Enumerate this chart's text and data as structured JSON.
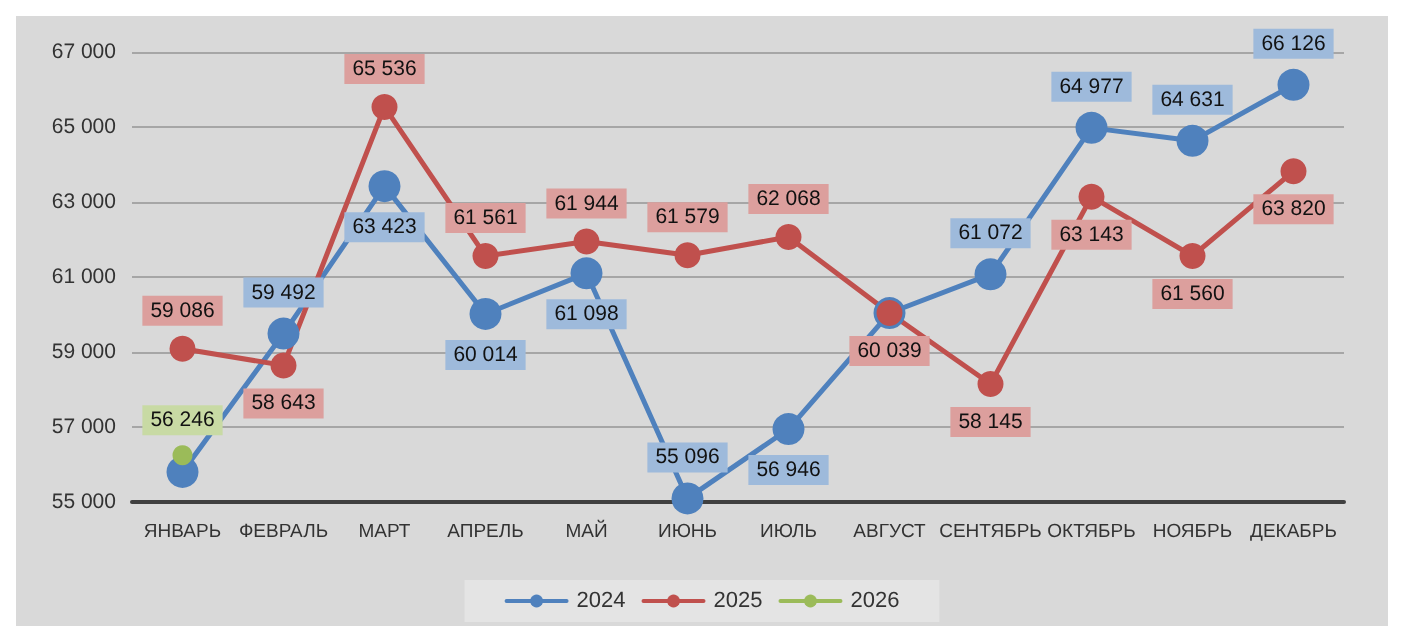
{
  "chart_data": {
    "type": "line",
    "categories": [
      "ЯНВАРЬ",
      "ФЕВРАЛЬ",
      "МАРТ",
      "АПРЕЛЬ",
      "МАЙ",
      "ИЮНЬ",
      "ИЮЛЬ",
      "АВГУСТ",
      "СЕНТЯБРЬ",
      "ОКТЯБРЬ",
      "НОЯБРЬ",
      "ДЕКАБРЬ"
    ],
    "series": [
      {
        "name": "2024",
        "color": "#4f81bd",
        "values": [
          55800,
          59492,
          63423,
          60014,
          61098,
          55096,
          56946,
          60039,
          61072,
          64977,
          64631,
          66126
        ],
        "value_labels": [
          null,
          "59 492",
          "63 423",
          "60 014",
          "61 098",
          "55 096",
          "56 946",
          null,
          "61 072",
          "64 977",
          "64 631",
          "66 126"
        ]
      },
      {
        "name": "2025",
        "color": "#c0504d",
        "values": [
          59086,
          58643,
          65536,
          61561,
          61944,
          61579,
          62068,
          60039,
          58145,
          63143,
          61560,
          63820
        ],
        "value_labels": [
          "59 086",
          "58 643",
          "65 536",
          "61 561",
          "61 944",
          "61 579",
          "62 068",
          "60 039",
          "58 145",
          "63 143",
          "61 560",
          "63 820"
        ]
      },
      {
        "name": "2026",
        "color": "#9bbb59",
        "values": [
          56246,
          null,
          null,
          null,
          null,
          null,
          null,
          null,
          null,
          null,
          null,
          null
        ],
        "value_labels": [
          "56 246",
          null,
          null,
          null,
          null,
          null,
          null,
          null,
          null,
          null,
          null,
          null
        ]
      }
    ],
    "ylim": [
      55000,
      67000
    ],
    "yticks": [
      {
        "value": 55000,
        "label": "55 000"
      },
      {
        "value": 57000,
        "label": "57 000"
      },
      {
        "value": 59000,
        "label": "59 000"
      },
      {
        "value": 61000,
        "label": "61 000"
      },
      {
        "value": 63000,
        "label": "63 000"
      },
      {
        "value": 65000,
        "label": "65 000"
      },
      {
        "value": 67000,
        "label": "67 000"
      }
    ],
    "grid": "y",
    "legend": "bottom",
    "marker": "circle",
    "line_style": "solid"
  }
}
